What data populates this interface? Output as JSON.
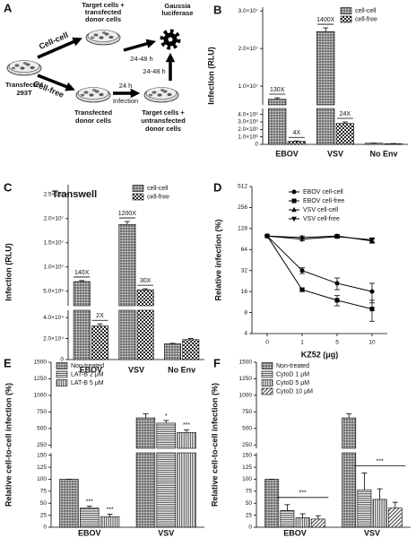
{
  "diagram": {
    "panel": "A",
    "cell_cell_target": [
      "Target cells +",
      "transfected",
      "donor cells"
    ],
    "reporter": [
      "Gaussia",
      "luciferase"
    ],
    "cell_cell_arrow": "Cell-cell",
    "cell_free_arrow": "Cell-free",
    "start": [
      "Transfected",
      "293T"
    ],
    "donor": [
      "Transfected",
      "donor cells"
    ],
    "infection_time": "24 h",
    "infection": "Infection",
    "cell_free_target": [
      "Target cells +",
      "untransfected",
      "donor cells"
    ],
    "readout_time_cell_cell": "24-48 h",
    "readout_time_cell_free": "24-48 h"
  },
  "chart_data": [
    {
      "panel": "B",
      "type": "bar",
      "ylabel": "Infection (RLU)",
      "categories": [
        "EBOV",
        "VSV",
        "No Env"
      ],
      "y_segments": [
        {
          "ylim": [
            0,
            4800000
          ],
          "yticks": [
            0,
            {
              "value": 1000000,
              "label": "1.0×10⁶"
            },
            {
              "value": 2000000,
              "label": "2.0×10⁶"
            },
            {
              "value": 3000000,
              "label": "3.0×10⁶"
            },
            {
              "value": 4000000,
              "label": "4.0×10⁶"
            }
          ]
        },
        {
          "ylim": [
            5000000,
            31000000
          ],
          "yticks": [
            {
              "value": 10000000,
              "label": "1.0×10⁷"
            },
            {
              "value": 20000000,
              "label": "2.0×10⁷"
            },
            {
              "value": 30000000,
              "label": "3.0×10⁷"
            }
          ]
        }
      ],
      "legend": "upper right",
      "annotation_rule": true,
      "series": [
        {
          "name": "cell-cell",
          "pattern": "crosshatch",
          "values": [
            6500000,
            24500000,
            150000
          ],
          "errors": [
            400000,
            1000000,
            20000
          ],
          "annotations": [
            "130X",
            "1400X",
            null
          ]
        },
        {
          "name": "cell-free",
          "pattern": "checker",
          "values": [
            400000,
            2800000,
            100000
          ],
          "errors": [
            50000,
            200000,
            10000
          ],
          "annotations": [
            "4X",
            "24X",
            null
          ]
        }
      ]
    },
    {
      "panel": "C",
      "type": "bar",
      "title": "Transwell",
      "ylabel": "Infection (RLU)",
      "categories": [
        "EBOV",
        "VSV",
        "No Env"
      ],
      "y_segments": [
        {
          "ylim": [
            0,
            47000
          ],
          "yticks": [
            0,
            {
              "value": 20000,
              "label": "2.0×10⁴"
            },
            {
              "value": 40000,
              "label": "4.0×10⁴"
            }
          ]
        },
        {
          "ylim": [
            2000000,
            27000000
          ],
          "yticks": [
            {
              "value": 5000000,
              "label": "5.0×10⁶"
            },
            {
              "value": 10000000,
              "label": "1.0×10⁷"
            },
            {
              "value": 15000000,
              "label": "1.5×10⁷"
            },
            {
              "value": 20000000,
              "label": "2.0×10⁷"
            },
            {
              "value": 25000000,
              "label": "2.5×10⁷"
            }
          ]
        }
      ],
      "legend": "upper right",
      "annotation_rule": true,
      "series": [
        {
          "name": "cell-cell",
          "pattern": "crosshatch",
          "values": [
            7000000,
            18800000,
            15000
          ],
          "errors": [
            200000,
            600000,
            500
          ],
          "annotations": [
            "140X",
            "1200X",
            null
          ]
        },
        {
          "name": "cell-free",
          "pattern": "checker",
          "values": [
            32000,
            5300000,
            19000
          ],
          "errors": [
            2000,
            200000,
            1000
          ],
          "annotations": [
            "2X",
            "30X",
            null
          ]
        }
      ]
    },
    {
      "panel": "D",
      "type": "line",
      "ylabel": "Relative infection (%)",
      "xlabel": "KZ52 (μg)",
      "categories": [
        "0",
        "1",
        "5",
        "10"
      ],
      "ylim": [
        4,
        512
      ],
      "yticks": [
        4,
        8,
        16,
        32,
        64,
        128,
        256,
        512
      ],
      "log_base": 2,
      "legend": "upper right",
      "series": [
        {
          "name": "EBOV cell-cell",
          "marker": "circle",
          "values": [
            100,
            32,
            21,
            16
          ],
          "errors": [
            0,
            3,
            4,
            5
          ]
        },
        {
          "name": "EBOV cell-free",
          "marker": "square",
          "values": [
            100,
            17,
            12,
            9
          ],
          "errors": [
            0,
            1,
            2,
            3
          ]
        },
        {
          "name": "VSV cell-cell",
          "marker": "triangle-up",
          "values": [
            100,
            95,
            100,
            85
          ],
          "errors": [
            0,
            5,
            5,
            6
          ]
        },
        {
          "name": "VSV cell-free",
          "marker": "triangle-down",
          "values": [
            100,
            90,
            98,
            88
          ],
          "errors": [
            0,
            5,
            5,
            6
          ]
        }
      ]
    },
    {
      "panel": "E",
      "type": "bar",
      "ylabel": "Relative cell-to-cell infection (%)",
      "categories": [
        "EBOV",
        "VSV"
      ],
      "y_segments": [
        {
          "ylim": [
            0,
            155
          ],
          "yticks": [
            0,
            25,
            50,
            75,
            100,
            125,
            150
          ]
        },
        {
          "ylim": [
            200,
            1500
          ],
          "yticks": [
            250,
            500,
            750,
            1000,
            1250,
            1500
          ]
        }
      ],
      "legend": "upper left",
      "series": [
        {
          "name": "Non-treated",
          "pattern": "crosshatch",
          "values": [
            100,
            660
          ],
          "errors": [
            0,
            60
          ],
          "annotations": [
            null,
            null
          ]
        },
        {
          "name": "LAT-B 2 μM",
          "pattern": "hlines",
          "values": [
            40,
            580
          ],
          "errors": [
            4,
            40
          ],
          "annotations": [
            "***",
            "*"
          ]
        },
        {
          "name": "LAT-B 5 μM",
          "pattern": "vlines",
          "values": [
            22,
            440
          ],
          "errors": [
            5,
            40
          ],
          "annotations": [
            "***",
            "***"
          ]
        }
      ]
    },
    {
      "panel": "F",
      "type": "bar",
      "ylabel": "Relative cell-to-cell infection (%)",
      "categories": [
        "EBOV",
        "VSV"
      ],
      "y_segments": [
        {
          "ylim": [
            0,
            155
          ],
          "yticks": [
            0,
            25,
            50,
            75,
            100,
            125,
            150
          ]
        },
        {
          "ylim": [
            200,
            1500
          ],
          "yticks": [
            250,
            500,
            750,
            1000,
            1250,
            1500
          ]
        }
      ],
      "legend": "upper left",
      "group_annotations": [
        "***",
        "***"
      ],
      "series": [
        {
          "name": "Non-treated",
          "pattern": "crosshatch",
          "values": [
            100,
            660
          ],
          "errors": [
            0,
            60
          ]
        },
        {
          "name": "CytoD 1 μM",
          "pattern": "hlines",
          "values": [
            35,
            78
          ],
          "errors": [
            12,
            35
          ]
        },
        {
          "name": "CytoD 5 μM",
          "pattern": "vlines",
          "values": [
            20,
            58
          ],
          "errors": [
            8,
            22
          ]
        },
        {
          "name": "CytoD 10 μM",
          "pattern": "diag",
          "values": [
            17,
            40
          ],
          "errors": [
            7,
            12
          ]
        }
      ]
    }
  ]
}
